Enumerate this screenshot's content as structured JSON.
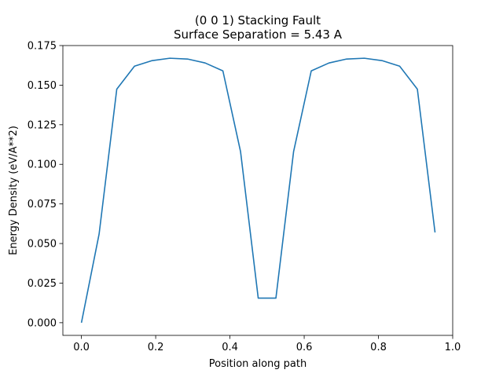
{
  "chart_data": {
    "type": "line",
    "title": "(0 0 1) Stacking Fault",
    "subtitle": "Surface Separation = 5.43 A",
    "xlabel": "Position along path",
    "ylabel": "Energy Density (eV/A**2)",
    "xlim": [
      -0.05,
      1.0
    ],
    "ylim": [
      -0.008,
      0.175
    ],
    "xticks": [
      0.0,
      0.2,
      0.4,
      0.6,
      0.8,
      1.0
    ],
    "xtick_labels": [
      "0.0",
      "0.2",
      "0.4",
      "0.6",
      "0.8",
      "1.0"
    ],
    "yticks": [
      0.0,
      0.025,
      0.05,
      0.075,
      0.1,
      0.125,
      0.15,
      0.175
    ],
    "ytick_labels": [
      "0.000",
      "0.025",
      "0.050",
      "0.075",
      "0.100",
      "0.125",
      "0.150",
      "0.175"
    ],
    "grid": false,
    "line_color": "#1f77b4",
    "x": [
      0.0,
      0.0476,
      0.0952,
      0.1429,
      0.1905,
      0.2381,
      0.2857,
      0.3333,
      0.381,
      0.4286,
      0.4762,
      0.5238,
      0.5714,
      0.619,
      0.6667,
      0.7143,
      0.7619,
      0.8095,
      0.8571,
      0.9048,
      0.9524
    ],
    "y": [
      0.0,
      0.056,
      0.1475,
      0.162,
      0.1655,
      0.167,
      0.1665,
      0.164,
      0.159,
      0.108,
      0.0155,
      0.0155,
      0.108,
      0.159,
      0.164,
      0.1665,
      0.167,
      0.1655,
      0.162,
      0.1475,
      0.057
    ]
  }
}
